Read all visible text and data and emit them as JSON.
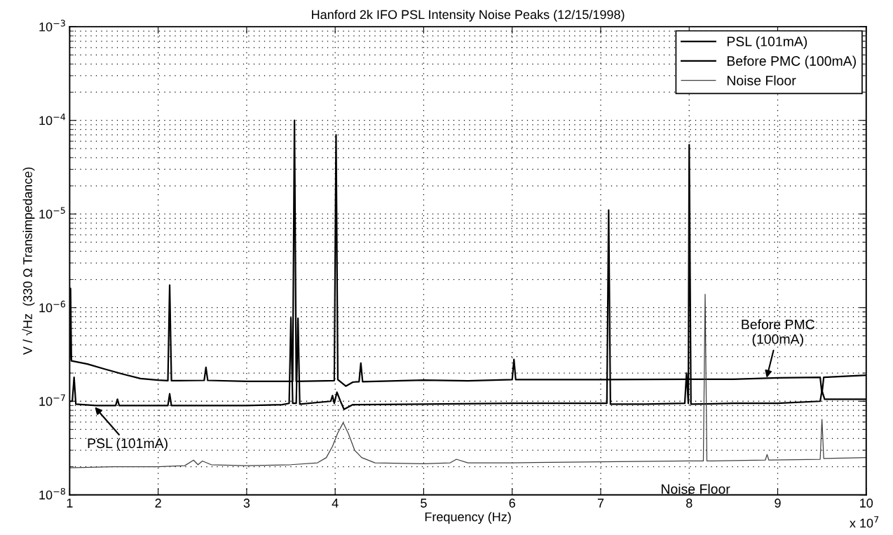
{
  "chart_data": {
    "type": "line",
    "title": "Hanford 2k IFO PSL Intensity Noise Peaks (12/15/1998)",
    "xlabel": "Frequency (Hz)",
    "ylabel": "V / √Hz  (330 Ω Transimpedance)",
    "log": "y",
    "grid": true,
    "legend": "top right",
    "line_style": "solid",
    "xlim": [
      1,
      10
    ],
    "xticks": [
      1,
      2,
      3,
      4,
      5,
      6,
      7,
      8,
      9,
      10
    ],
    "ylim": [
      1e-08,
      0.001
    ],
    "yticks": [
      {
        "value": 1e-08,
        "label": "10$^{−8}$"
      },
      {
        "value": 1e-07,
        "label": "10$^{−7}$"
      },
      {
        "value": 1e-06,
        "label": "10$^{−6}$"
      },
      {
        "value": 1e-05,
        "label": "10$^{−5}$"
      },
      {
        "value": 0.0001,
        "label": "10$^{−4}$"
      },
      {
        "value": 0.001,
        "label": "10$^{−3}$"
      }
    ],
    "series": [
      {
        "name": "PSL (101mA)",
        "color": "#000000",
        "x": [
          1.0,
          1.03,
          1.05,
          1.07,
          1.3,
          1.52,
          1.54,
          1.56,
          2.11,
          2.13,
          2.15,
          3.0,
          3.4,
          3.48,
          3.5,
          3.52,
          3.56,
          3.58,
          3.6,
          3.95,
          3.97,
          3.99,
          4.02,
          4.06,
          4.1,
          4.2,
          5.0,
          6.0,
          7.07,
          7.09,
          7.11,
          7.5,
          7.95,
          7.97,
          7.99,
          8.0,
          8.02,
          8.5,
          9.0,
          9.48,
          9.5,
          9.53,
          10.0
        ],
        "values": [
          1e-07,
          1e-07,
          1.8e-07,
          9.3e-08,
          9e-08,
          9e-08,
          1.05e-07,
          9e-08,
          9e-08,
          1.2e-07,
          9e-08,
          9e-08,
          9.2e-08,
          9.5e-08,
          7.8e-07,
          9.5e-08,
          9.5e-08,
          7.7e-07,
          9.3e-08,
          1e-07,
          1.15e-07,
          9.5e-08,
          1.25e-07,
          1e-07,
          8.2e-08,
          9.2e-08,
          9.3e-08,
          9.5e-08,
          9.5e-08,
          1.1e-05,
          9.3e-08,
          9.3e-08,
          9.5e-08,
          2e-07,
          9.5e-08,
          5.5e-05,
          9.3e-08,
          9.5e-08,
          9.5e-08,
          1e-07,
          1.3e-07,
          1.05e-07,
          1.05e-07
        ]
      },
      {
        "name": "Before PMC (100mA)",
        "color": "#000000",
        "x": [
          1.0,
          1.01,
          1.02,
          1.2,
          1.4,
          1.6,
          1.8,
          2.0,
          2.11,
          2.13,
          2.15,
          2.52,
          2.54,
          2.56,
          3.0,
          3.52,
          3.54,
          3.56,
          3.9,
          3.99,
          4.01,
          4.03,
          4.12,
          4.2,
          4.27,
          4.29,
          4.31,
          5.0,
          5.5,
          6.0,
          6.02,
          6.04,
          7.0,
          8.0,
          8.5,
          9.0,
          9.48,
          9.5,
          9.52,
          10.0
        ],
        "values": [
          2.8e-07,
          1.6e-06,
          2.7e-07,
          2.5e-07,
          2.2e-07,
          1.95e-07,
          1.75e-07,
          1.68e-07,
          1.66e-07,
          1.74e-06,
          1.66e-07,
          1.67e-07,
          2.3e-07,
          1.67e-07,
          1.63e-07,
          1.63e-07,
          0.0001,
          1.63e-07,
          1.65e-07,
          1.66e-07,
          7e-05,
          1.7e-07,
          1.45e-07,
          1.6e-07,
          1.62e-07,
          2.55e-07,
          1.62e-07,
          1.68e-07,
          1.65e-07,
          1.7e-07,
          2.8e-07,
          1.7e-07,
          1.7e-07,
          1.72e-07,
          1.72e-07,
          1.78e-07,
          1.8e-07,
          1.2e-07,
          1.8e-07,
          1.9e-07
        ]
      },
      {
        "name": "Noise Floor",
        "color": "#404040",
        "x": [
          1.0,
          1.5,
          2.0,
          2.3,
          2.4,
          2.45,
          2.5,
          2.6,
          3.0,
          3.5,
          3.8,
          3.9,
          3.97,
          4.03,
          4.09,
          4.15,
          4.22,
          4.3,
          4.45,
          5.0,
          5.3,
          5.37,
          5.5,
          6.0,
          7.0,
          8.0,
          8.16,
          8.18,
          8.2,
          8.86,
          8.88,
          8.9,
          9.48,
          9.5,
          9.52,
          10.0
        ],
        "values": [
          1.95e-08,
          2e-08,
          2e-08,
          2.05e-08,
          2.35e-08,
          2.1e-08,
          2.3e-08,
          2.1e-08,
          2.05e-08,
          2.1e-08,
          2.2e-08,
          2.5e-08,
          3.3e-08,
          4.6e-08,
          5.9e-08,
          4.5e-08,
          3e-08,
          2.5e-08,
          2.2e-08,
          2.15e-08,
          2.2e-08,
          2.4e-08,
          2.2e-08,
          2.2e-08,
          2.25e-08,
          2.3e-08,
          2.3e-08,
          1.39e-06,
          2.3e-08,
          2.35e-08,
          2.7e-08,
          2.35e-08,
          2.4e-08,
          6.4e-08,
          2.45e-08,
          2.5e-08
        ]
      }
    ],
    "annotations": [
      {
        "text": "PSL (101mA)",
        "x": 1.27,
        "y": 9e-08
      },
      {
        "text": "Before PMC\n(100mA)",
        "x": 8.87,
        "y": 1.7e-07
      },
      {
        "text": "Noise Floor",
        "x": 8.07,
        "y": 2.3e-08
      },
      "x 10$^{7}$"
    ]
  }
}
